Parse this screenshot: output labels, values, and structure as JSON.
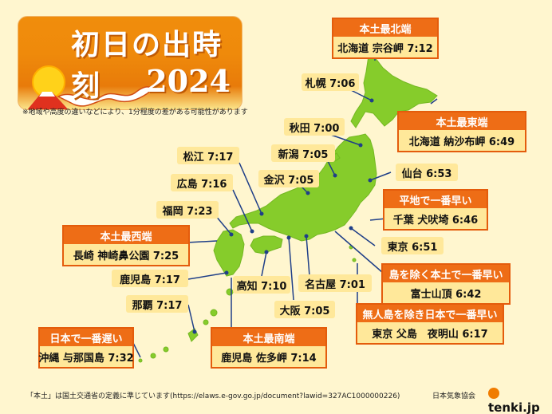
{
  "title": {
    "main": "初日の出時刻",
    "year": "2024"
  },
  "note": "※地域や高度の違いなどにより、1分程度の差がある可能性があります",
  "footer": "「本土」は国土交通省の定義に準じています(https://elaws.e-gov.go.jp/document?lawid=327AC1000000226)",
  "org": "日本気象協会",
  "logo": "tenki.jp",
  "colors": {
    "background": "#fff6cf",
    "land": "#86cc2b",
    "label_bg": "#ffe89a",
    "header_orange": "#ee6d16",
    "leader_line": "#1f3f88"
  },
  "labels": [
    {
      "id": "sapporo",
      "text": "札幌 7:06"
    },
    {
      "id": "akita",
      "text": "秋田 7:00"
    },
    {
      "id": "niigata",
      "text": "新潟 7:05"
    },
    {
      "id": "matsue",
      "text": "松江 7:17"
    },
    {
      "id": "kanazawa",
      "text": "金沢 7:05"
    },
    {
      "id": "sendai",
      "text": "仙台 6:53"
    },
    {
      "id": "hiroshima",
      "text": "広島 7:16"
    },
    {
      "id": "fukuoka",
      "text": "福岡 7:23"
    },
    {
      "id": "tokyo",
      "text": "東京 6:51"
    },
    {
      "id": "kagoshima",
      "text": "鹿児島 7:17"
    },
    {
      "id": "kochi",
      "text": "高知 7:10"
    },
    {
      "id": "nagoya",
      "text": "名古屋 7:01"
    },
    {
      "id": "naha",
      "text": "那覇 7:17"
    },
    {
      "id": "osaka",
      "text": "大阪 7:05"
    }
  ],
  "callouts": [
    {
      "id": "north",
      "header": "本土最北端",
      "body": "北海道 宗谷岬 7:12"
    },
    {
      "id": "east",
      "header": "本土最東端",
      "body": "北海道 納沙布岬 6:49"
    },
    {
      "id": "plain",
      "header": "平地で一番早い",
      "body": "千葉 犬吠埼 6:46"
    },
    {
      "id": "fuji",
      "header": "島を除く本土で一番早い",
      "body": "富士山頂 6:42"
    },
    {
      "id": "west",
      "header": "本土最西端",
      "body": "長崎 神崎鼻公園 7:25"
    },
    {
      "id": "uninhabited",
      "header": "無人島を除き日本で一番早い",
      "body": "東京 父島　夜明山 6:17"
    },
    {
      "id": "south",
      "header": "本土最南端",
      "body": "鹿児島 佐多岬 7:14"
    },
    {
      "id": "latest",
      "header": "日本で一番遅い",
      "body": "沖縄 与那国島 7:32"
    }
  ]
}
